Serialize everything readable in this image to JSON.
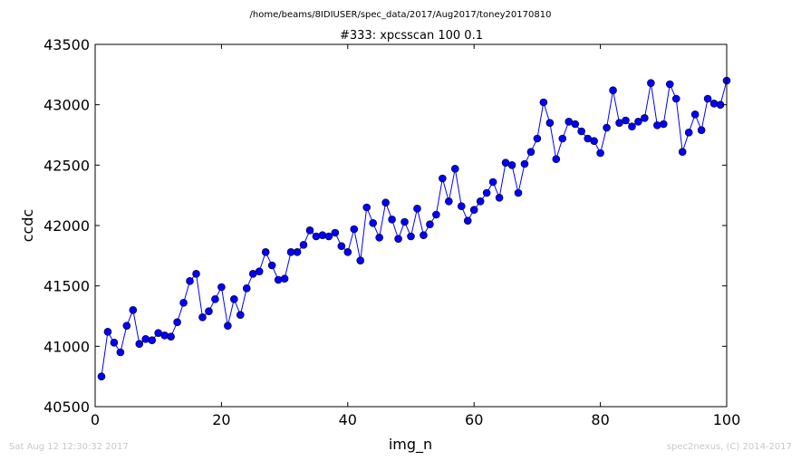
{
  "chart_data": {
    "type": "line",
    "suptitle": "/home/beams/8IDIUSER/spec_data/2017/Aug2017/toney20170810",
    "title": "#333: xpcsscan 100 0.1",
    "xlabel": "img_n",
    "ylabel": "ccdc",
    "xlim": [
      0,
      100
    ],
    "ylim": [
      40500,
      43500
    ],
    "xticks": [
      "0",
      "20",
      "40",
      "60",
      "80",
      "100"
    ],
    "yticks": [
      "40500",
      "41000",
      "41500",
      "42000",
      "42500",
      "43000",
      "43500"
    ],
    "grid": false,
    "series_color": "#0000ff",
    "series": [
      {
        "x": [
          1,
          2,
          3,
          4,
          5,
          6,
          7,
          8,
          9,
          10,
          11,
          12,
          13,
          14,
          15,
          16,
          17,
          18,
          19,
          20,
          21,
          22,
          23,
          24,
          25,
          26,
          27,
          28,
          29,
          30,
          31,
          32,
          33,
          34,
          35,
          36,
          37,
          38,
          39,
          40,
          41,
          42,
          43,
          44,
          45,
          46,
          47,
          48,
          49,
          50,
          51,
          52,
          53,
          54,
          55,
          56,
          57,
          58,
          59,
          60,
          61,
          62,
          63,
          64,
          65,
          66,
          67,
          68,
          69,
          70,
          71,
          72,
          73,
          74,
          75,
          76,
          77,
          78,
          79,
          80,
          81,
          82,
          83,
          84,
          85,
          86,
          87,
          88,
          89,
          90,
          91,
          92,
          93,
          94,
          95,
          96,
          97,
          98,
          99,
          100
        ],
        "y": [
          40750,
          41120,
          41030,
          40950,
          41170,
          41300,
          41020,
          41060,
          41050,
          41110,
          41090,
          41080,
          41200,
          41360,
          41540,
          41600,
          41240,
          41290,
          41390,
          41490,
          41170,
          41390,
          41260,
          41480,
          41600,
          41620,
          41780,
          41670,
          41550,
          41560,
          41780,
          41780,
          41840,
          41960,
          41910,
          41920,
          41910,
          41940,
          41830,
          41780,
          41970,
          41710,
          42150,
          42020,
          41900,
          42190,
          42050,
          41890,
          42030,
          41910,
          42140,
          41920,
          42010,
          42090,
          42390,
          42200,
          42470,
          42160,
          42040,
          42130,
          42200,
          42270,
          42360,
          42230,
          42520,
          42500,
          42270,
          42510,
          42610,
          42720,
          43020,
          42850,
          42550,
          42720,
          42860,
          42840,
          42780,
          42720,
          42700,
          42600,
          42810,
          43120,
          42850,
          42870,
          42820,
          42860,
          42890,
          43180,
          42830,
          42840,
          43170,
          43050,
          42610,
          42770,
          42920,
          42790,
          43050,
          43010,
          43000,
          43200
        ]
      }
    ]
  },
  "footer": {
    "timestamp": "Sat Aug 12 12:30:32 2017",
    "credit": "spec2nexus, (C) 2014-2017"
  }
}
